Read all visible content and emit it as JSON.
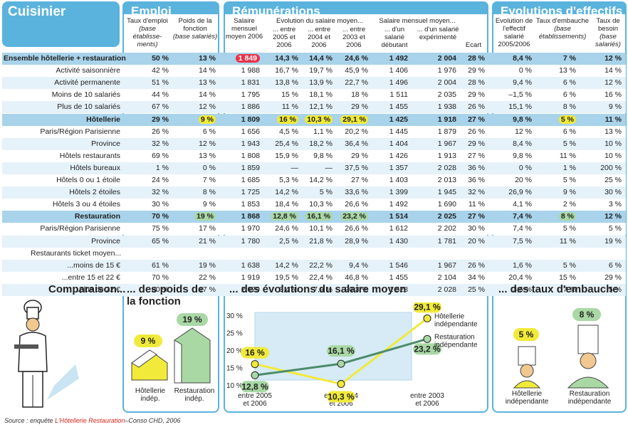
{
  "header": {
    "title": "Cuisinier",
    "section_emploi": "Emploi",
    "section_remunerations": "Rémunérations",
    "section_evolutions": "Evolutions d'effectifs"
  },
  "columns": {
    "taux_emploi": "Taux d'emploi",
    "taux_emploi_note": "(base établisse-ments)",
    "poids": "Poids de la fonction",
    "poids_note": "(base salariés)",
    "salaire_mensuel": "Salaire mensuel moyen 2006",
    "evol_title": "Evolution du salaire moyen...",
    "evol_2005": "... entre 2005 et 2006",
    "evol_2004": "... entre 2004 et 2006",
    "evol_2003": "... entre 2003 et 2006",
    "sal_title": "Salaire mensuel moyen...",
    "sal_debutant": "... d'un salarié débutant",
    "sal_experimente": "... d'un salarié expérimenté",
    "ecart": "Ecart",
    "evol_effectif": "Evolution de l'effectif salarié 2005/2006",
    "taux_embauche": "Taux d'embauche",
    "taux_embauche_note": "(base établissements)",
    "taux_besoin": "Taux de besoin",
    "taux_besoin_note": "(base salariés)"
  },
  "rows": [
    {
      "label": "Ensemble hôtellerie + restauration",
      "type": "hl",
      "v": [
        "50 %",
        "13 %",
        "1 849",
        "14,3 %",
        "14,4 %",
        "24,6 %",
        "1 492",
        "2 004",
        "28 %",
        "8,4 %",
        "7 %",
        "12 %"
      ]
    },
    {
      "label": "Activité saisonnière",
      "type": "sub",
      "v": [
        "42 %",
        "14 %",
        "1 988",
        "16,7 %",
        "19,7 %",
        "45,9 %",
        "1 406",
        "1 976",
        "29 %",
        "0 %",
        "13 %",
        "14 %"
      ]
    },
    {
      "label": "Activité permanente",
      "type": "alt",
      "v": [
        "51 %",
        "13 %",
        "1 831",
        "13,8 %",
        "13,9 %",
        "22,7 %",
        "1 496",
        "2 004",
        "28 %",
        "9,4 %",
        "6 %",
        "12 %"
      ]
    },
    {
      "label": "Moins de 10 salariés",
      "type": "sub",
      "v": [
        "44 %",
        "14 %",
        "1 795",
        "15 %",
        "18,1 %",
        "18 %",
        "1 511",
        "2 035",
        "29 %",
        "–1,5 %",
        "6 %",
        "16 %"
      ]
    },
    {
      "label": "Plus de 10 salariés",
      "type": "alt",
      "v": [
        "67 %",
        "12 %",
        "1 886",
        "11 %",
        "12,1 %",
        "29 %",
        "1 455",
        "1 938",
        "26 %",
        "15,1 %",
        "8 %",
        "9 %"
      ]
    },
    {
      "label": "Hôtellerie",
      "type": "hl",
      "v": [
        "29 %",
        "9 %",
        "1 809",
        "16 %",
        "10,3 %",
        "29,1 %",
        "1 425",
        "1 918",
        "27 %",
        "9,8 %",
        "5 %",
        "11 %"
      ]
    },
    {
      "label": "Paris/Région Parisienne",
      "type": "sub",
      "v": [
        "26 %",
        "6 %",
        "1 656",
        "4,5 %",
        "1,1 %",
        "20,2 %",
        "1 445",
        "1 879",
        "26 %",
        "12 %",
        "6 %",
        "13 %"
      ]
    },
    {
      "label": "Province",
      "type": "alt",
      "v": [
        "32 %",
        "12 %",
        "1 943",
        "25,4 %",
        "18,2 %",
        "36,4 %",
        "1 404",
        "1 967",
        "29 %",
        "8,4 %",
        "5 %",
        "10 %"
      ]
    },
    {
      "label": "Hôtels restaurants",
      "type": "sub",
      "v": [
        "69 %",
        "13 %",
        "1 808",
        "15,9 %",
        "9,8 %",
        "29 %",
        "1 426",
        "1 913",
        "27 %",
        "9,8 %",
        "11 %",
        "10 %"
      ]
    },
    {
      "label": "Hôtels bureaux",
      "type": "alt",
      "v": [
        "1 %",
        "0 %",
        "1 859",
        "—",
        "—",
        "37,5 %",
        "1 357",
        "2 028",
        "36 %",
        "0 %",
        "1 %",
        "200 %"
      ]
    },
    {
      "label": "Hôtels 0 ou 1 étoile",
      "type": "sub",
      "v": [
        "24 %",
        "7 %",
        "1 685",
        "5,3 %",
        "14,2 %",
        "27 %",
        "1 403",
        "2 013",
        "36 %",
        "20 %",
        "5 %",
        "25 %"
      ]
    },
    {
      "label": "Hôtels 2 étoiles",
      "type": "alt",
      "v": [
        "32 %",
        "8 %",
        "1 725",
        "14,2 %",
        "5 %",
        "33,6 %",
        "1 399",
        "1 945",
        "32 %",
        "26,9 %",
        "9 %",
        "30 %"
      ]
    },
    {
      "label": "Hôtels 3 ou 4 étoiles",
      "type": "sub",
      "v": [
        "30 %",
        "9 %",
        "1 853",
        "18,4 %",
        "10,3 %",
        "26,6 %",
        "1 492",
        "1 690",
        "11 %",
        "4,1 %",
        "2 %",
        "3 %"
      ]
    },
    {
      "label": "Restauration",
      "type": "hl",
      "v": [
        "70 %",
        "19 %",
        "1 868",
        "12,8 %",
        "16,1 %",
        "23,2 %",
        "1 514",
        "2 025",
        "27 %",
        "7,4 %",
        "8 %",
        "12 %"
      ]
    },
    {
      "label": "Paris/Région Parisienne",
      "type": "sub",
      "v": [
        "75 %",
        "17 %",
        "1 970",
        "24,6 %",
        "10,1 %",
        "26,6 %",
        "1 612",
        "2 202",
        "30 %",
        "7,4 %",
        "5 %",
        "5 %"
      ]
    },
    {
      "label": "Province",
      "type": "alt",
      "v": [
        "65 %",
        "21 %",
        "1 780",
        "2,5 %",
        "21,8 %",
        "28,9 %",
        "1 430",
        "1 781",
        "20 %",
        "7,5 %",
        "11 %",
        "19 %"
      ]
    },
    {
      "label": "Restaurants ticket moyen...",
      "type": "sub",
      "v": [
        "",
        "",
        "",
        "",
        "",
        "",
        "",
        "",
        "",
        "",
        "",
        ""
      ]
    },
    {
      "label": "...moins de 15 €",
      "type": "alt",
      "v": [
        "61 %",
        "19 %",
        "1 638",
        "14,2 %",
        "22,2 %",
        "9,4 %",
        "1 546",
        "1 967",
        "26 %",
        "1,6 %",
        "5 %",
        "6 %"
      ]
    },
    {
      "label": "...entre 15 et 22 €",
      "type": "sub",
      "v": [
        "70 %",
        "22 %",
        "1 919",
        "19,5 %",
        "22,4 %",
        "46,8 %",
        "1 455",
        "2 104",
        "34 %",
        "20,4 %",
        "15 %",
        "29 %"
      ]
    },
    {
      "label": "...plus de 22 €",
      "type": "alt",
      "v": [
        "80 %",
        "17 %",
        "2 029",
        "3,4 %",
        "7,9 %",
        "20,3 %",
        "1 528",
        "2 028",
        "25 %",
        "3,6 %",
        "7 %",
        "5 %"
      ]
    }
  ],
  "bottom": {
    "comparaison": "Comparaison...",
    "poids_title": "... des poids de la fonction",
    "poids_h": "9 %",
    "poids_r": "19 %",
    "poids_h_label": "Hôtellerie indép.",
    "poids_r_label": "Restauration indép.",
    "evol_title": "... des évolutions du salaire moyen",
    "embauche_title": "... des taux d'embauche",
    "embauche_h": "5 %",
    "embauche_r": "8 %",
    "embauche_h_label": "Hôtellerie indépendante",
    "embauche_r_label": "Restauration indépendante",
    "source_prefix": "Source : enquête ",
    "source_brand": "L'Hôtellerie Restauration",
    "source_suffix": "–Conso CHD, 2006"
  },
  "chart_data": {
    "type": "line",
    "categories": [
      "entre 2005 et 2006",
      "entre 2004 et 2006",
      "entre 2003 et 2006"
    ],
    "ylim": [
      10,
      30
    ],
    "yticks": [
      "30 %",
      "25 %",
      "20 %",
      "15 %",
      "10 %"
    ],
    "series": [
      {
        "name": "Hôtellerie indépendante",
        "values": [
          16,
          10.3,
          29.1
        ],
        "labels": [
          "16 %",
          "10,3 %",
          "29,1 %"
        ],
        "color": "#f1ea3a"
      },
      {
        "name": "Restauration indépendante",
        "values": [
          12.8,
          16.1,
          23.2
        ],
        "labels": [
          "12,8 %",
          "16,1 %",
          "23,2 %"
        ],
        "color": "#a9d8a5"
      }
    ]
  }
}
